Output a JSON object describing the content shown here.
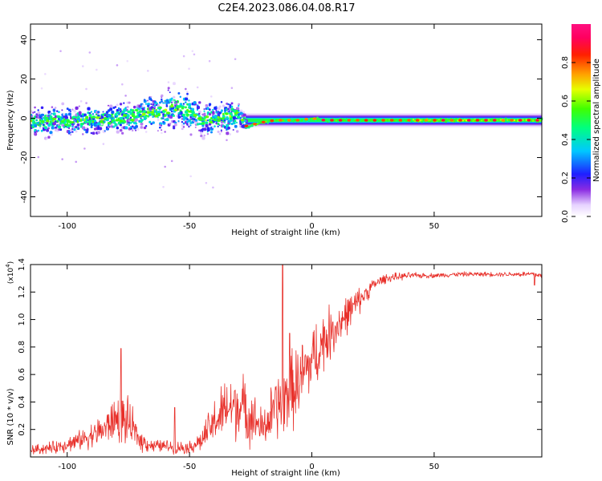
{
  "title": "C2E4.2023.086.04.08.R17",
  "chart_data": [
    {
      "type": "heatmap",
      "xlabel": "Height of straight line (km)",
      "ylabel": "Frequency (Hz)",
      "xlim": [
        -115,
        94
      ],
      "ylim": [
        -50,
        48
      ],
      "x_ticks": [
        -100,
        -50,
        0,
        50
      ],
      "x_tick_labels": [
        "-100",
        "-50",
        "0",
        "50"
      ],
      "y_ticks": [
        -40,
        -20,
        0,
        20,
        40
      ],
      "y_tick_labels": [
        "-40",
        "-20",
        "0",
        "20",
        "40"
      ],
      "grid": false,
      "colorbar": {
        "label": "Normalized spectral amplitude",
        "range": [
          0,
          1
        ],
        "ticks": [
          0,
          0.2,
          0.4,
          0.6,
          0.8
        ],
        "tick_labels": [
          "0.0",
          "0.2",
          "0.4",
          "0.6",
          "0.8"
        ],
        "colormap": "rainbow (white-violet-blue-cyan-green-yellow-orange-red-magenta)"
      },
      "profile": {
        "x": [
          -115,
          -100,
          -90,
          -80,
          -70,
          -60,
          -55,
          -50,
          -45,
          -40,
          -35,
          -30,
          -27,
          -20,
          -15,
          -10,
          -5,
          0,
          5,
          10,
          20,
          30,
          40,
          50,
          60,
          70,
          80,
          94
        ],
        "peak_frequency_hz": [
          -2,
          -1,
          -1,
          0,
          2,
          4,
          5,
          3,
          -2,
          0,
          1,
          2,
          -4,
          -2,
          -1,
          -1,
          -1,
          0,
          -1,
          -1,
          -1,
          -1,
          -1,
          -1,
          -1,
          -1,
          -1,
          -1
        ],
        "spread_hz": [
          6,
          6,
          6,
          6,
          7,
          8,
          9,
          8,
          8,
          7,
          7,
          6,
          2,
          1.5,
          1.5,
          1.5,
          1.5,
          1.5,
          1.5,
          1.5,
          1.5,
          1.5,
          1.5,
          1.5,
          1.5,
          1.5,
          1.5,
          1.5
        ]
      }
    },
    {
      "type": "line",
      "xlabel": "Height of straight line (km)",
      "ylabel": "SNR (10 * v/v)",
      "y_multiplier_label": "(x10",
      "y_multiplier_exponent": "4",
      "y_multiplier_close": ")",
      "xlim": [
        -115,
        94
      ],
      "ylim": [
        0,
        1.4
      ],
      "x_ticks": [
        -100,
        -50,
        0,
        50
      ],
      "x_tick_labels": [
        "-100",
        "-50",
        "0",
        "50"
      ],
      "y_ticks": [
        0.2,
        0.4,
        0.6,
        0.8,
        1.0,
        1.2,
        1.4
      ],
      "y_tick_labels": [
        "0.2",
        "0.4",
        "0.6",
        "0.8",
        "1.0",
        "1.2",
        "1.4"
      ],
      "grid": false,
      "series_color": "#e8302a",
      "envelope": {
        "x": [
          -115,
          -105,
          -95,
          -85,
          -80,
          -75,
          -70,
          -65,
          -60,
          -55,
          -50,
          -45,
          -40,
          -35,
          -30,
          -25,
          -20,
          -15,
          -10,
          -5,
          0,
          5,
          10,
          15,
          20,
          25,
          30,
          40,
          50,
          60,
          70,
          80,
          90,
          94
        ],
        "mean": [
          0.05,
          0.07,
          0.12,
          0.2,
          0.28,
          0.25,
          0.12,
          0.08,
          0.08,
          0.07,
          0.07,
          0.12,
          0.25,
          0.35,
          0.38,
          0.3,
          0.2,
          0.35,
          0.45,
          0.55,
          0.7,
          0.85,
          0.95,
          1.05,
          1.15,
          1.25,
          1.3,
          1.32,
          1.32,
          1.33,
          1.33,
          1.33,
          1.33,
          1.32
        ],
        "noise": [
          0.03,
          0.04,
          0.06,
          0.1,
          0.15,
          0.15,
          0.07,
          0.04,
          0.04,
          0.04,
          0.04,
          0.07,
          0.15,
          0.2,
          0.22,
          0.18,
          0.12,
          0.22,
          0.25,
          0.25,
          0.22,
          0.2,
          0.15,
          0.12,
          0.08,
          0.04,
          0.03,
          0.02,
          0.015,
          0.015,
          0.015,
          0.015,
          0.02,
          0.02
        ]
      },
      "spikes": [
        {
          "x": -78,
          "y": 0.79
        },
        {
          "x": -56,
          "y": 0.36
        },
        {
          "x": -12,
          "y": 1.4
        },
        {
          "x": -9,
          "y": 0.9
        },
        {
          "x": 91,
          "y": 1.25
        }
      ]
    }
  ]
}
